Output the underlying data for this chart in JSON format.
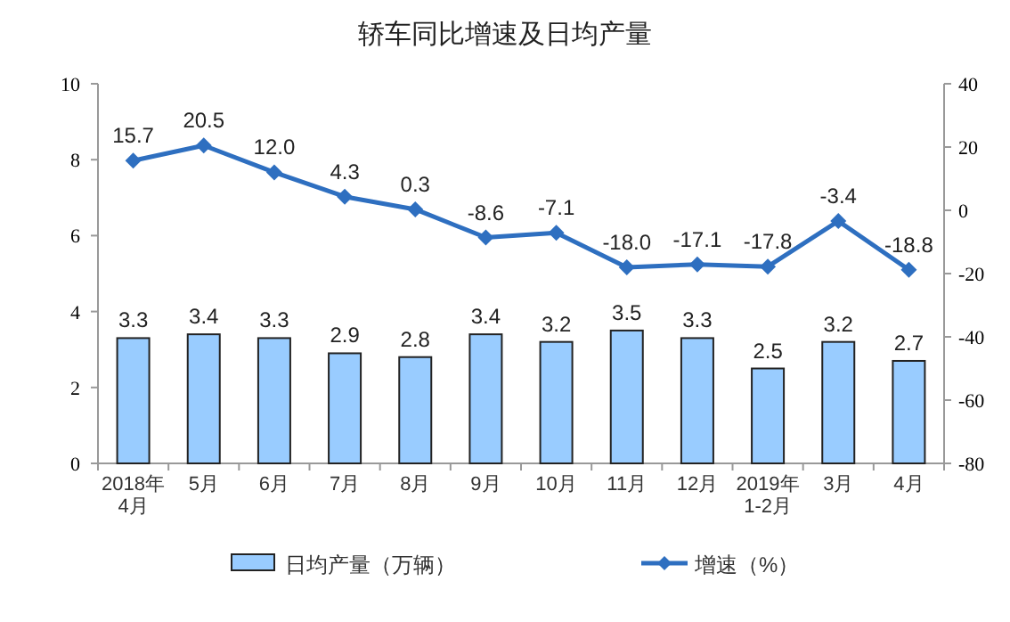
{
  "chart_data": {
    "type": "bar",
    "title": "轿车同比增速及日均产量",
    "categories": [
      "2018年\n4月",
      "5月",
      "6月",
      "7月",
      "8月",
      "9月",
      "10月",
      "11月",
      "12月",
      "2019年\n1-2月",
      "3月",
      "4月"
    ],
    "series": [
      {
        "name": "日均产量（万辆）",
        "color": "#99ccff",
        "values": [
          3.3,
          3.4,
          3.3,
          2.9,
          2.8,
          3.4,
          3.2,
          3.5,
          3.3,
          2.5,
          3.2,
          2.7
        ]
      },
      {
        "name": "增速（%）",
        "type": "line",
        "axis": "y2",
        "color": "#2e6fc0",
        "marker": "diamond",
        "values": [
          15.7,
          20.5,
          12.0,
          4.3,
          0.3,
          -8.6,
          -7.1,
          -18.0,
          -17.1,
          -17.8,
          -3.4,
          -18.8
        ],
        "value_labels": [
          "15.7",
          "20.5",
          "12.0",
          "4.3",
          "0.3",
          "-8.6",
          "-7.1",
          "-18.0",
          "-17.1",
          "-17.8",
          "-3.4",
          "-18.8"
        ]
      }
    ],
    "data_labels": true,
    "ylim": [
      0,
      10
    ],
    "yticks": [
      0,
      2,
      4,
      6,
      8,
      10
    ],
    "y2lim": [
      -80,
      40
    ],
    "y2ticks": [
      -80,
      -60,
      -40,
      -20,
      0,
      20,
      40
    ],
    "legend": "bottom",
    "grid": false
  }
}
